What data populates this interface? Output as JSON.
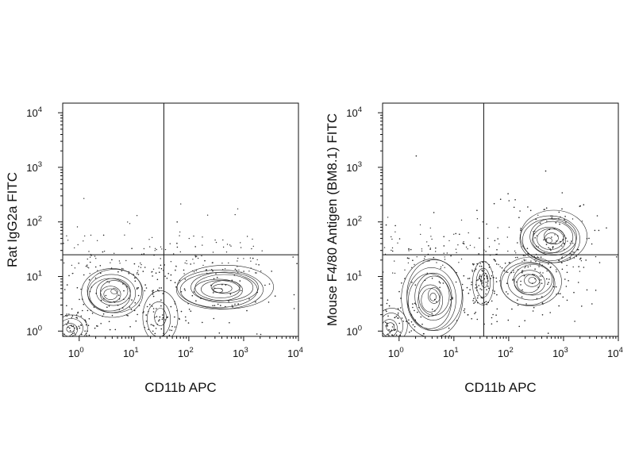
{
  "chart_data": [
    {
      "type": "scatter",
      "plot_style": "flow cytometry contour plot with outlier dots and quadrant gates",
      "title": "",
      "xlabel": "CD11b APC",
      "ylabel": "Rat IgG2a FITC",
      "scale": "log",
      "xlim": [
        0.5,
        10000
      ],
      "ylim": [
        0.8,
        15000
      ],
      "x_ticks": [
        {
          "base": "10",
          "exp": "0"
        },
        {
          "base": "10",
          "exp": "1"
        },
        {
          "base": "10",
          "exp": "2"
        },
        {
          "base": "10",
          "exp": "3"
        },
        {
          "base": "10",
          "exp": "4"
        }
      ],
      "y_ticks": [
        {
          "base": "10",
          "exp": "0"
        },
        {
          "base": "10",
          "exp": "1"
        },
        {
          "base": "10",
          "exp": "2"
        },
        {
          "base": "10",
          "exp": "3"
        },
        {
          "base": "10",
          "exp": "4"
        }
      ],
      "quadrant_gate": {
        "x": 35,
        "y": 25
      },
      "populations": [
        {
          "x": 4,
          "y": 5,
          "spread_x": 0.35,
          "spread_y": 0.28,
          "levels": 9
        },
        {
          "x": 0.7,
          "y": 1.1,
          "spread_x": 0.18,
          "spread_y": 0.15,
          "levels": 4
        },
        {
          "x": 400,
          "y": 6,
          "spread_x": 0.55,
          "spread_y": 0.25,
          "levels": 10
        },
        {
          "x": 30,
          "y": 1.8,
          "spread_x": 0.2,
          "spread_y": 0.3,
          "levels": 3
        }
      ],
      "grid": false
    },
    {
      "type": "scatter",
      "plot_style": "flow cytometry contour plot with outlier dots and quadrant gates",
      "title": "",
      "xlabel": "CD11b APC",
      "ylabel": "Mouse F4/80 Antigen (BM8.1) FITC",
      "scale": "log",
      "xlim": [
        0.5,
        10000
      ],
      "ylim": [
        0.8,
        15000
      ],
      "x_ticks": [
        {
          "base": "10",
          "exp": "0"
        },
        {
          "base": "10",
          "exp": "1"
        },
        {
          "base": "10",
          "exp": "2"
        },
        {
          "base": "10",
          "exp": "3"
        },
        {
          "base": "10",
          "exp": "4"
        }
      ],
      "y_ticks": [
        {
          "base": "10",
          "exp": "0"
        },
        {
          "base": "10",
          "exp": "1"
        },
        {
          "base": "10",
          "exp": "2"
        },
        {
          "base": "10",
          "exp": "3"
        },
        {
          "base": "10",
          "exp": "4"
        }
      ],
      "quadrant_gate": {
        "x": 35,
        "y": 25
      },
      "populations": [
        {
          "x": 4,
          "y": 4,
          "spread_x": 0.35,
          "spread_y": 0.45,
          "levels": 10
        },
        {
          "x": 0.7,
          "y": 1.2,
          "spread_x": 0.18,
          "spread_y": 0.2,
          "levels": 4
        },
        {
          "x": 600,
          "y": 50,
          "spread_x": 0.38,
          "spread_y": 0.3,
          "levels": 10
        },
        {
          "x": 250,
          "y": 8,
          "spread_x": 0.35,
          "spread_y": 0.28,
          "levels": 8
        },
        {
          "x": 35,
          "y": 8,
          "spread_x": 0.12,
          "spread_y": 0.25,
          "levels": 3
        }
      ],
      "grid": false
    }
  ]
}
